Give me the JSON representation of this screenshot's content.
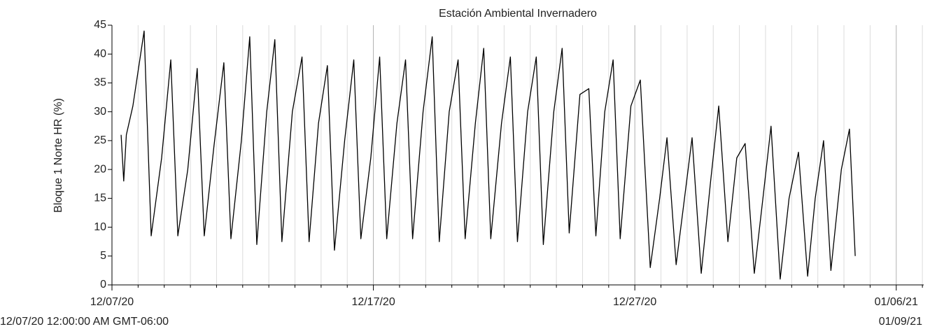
{
  "chart_data": {
    "type": "line",
    "title": "Estación Ambiental Invernadero",
    "ylabel": "Bloque 1 Norte HR (%)",
    "start_label": "12/07/20 12:00:00 AM GMT-06:00",
    "end_label": "01/09/21",
    "xlim": [
      0,
      31.05
    ],
    "xticks": [
      {
        "value": 0,
        "label": "12/07/20"
      },
      {
        "value": 10,
        "label": "12/17/20"
      },
      {
        "value": 20,
        "label": "12/27/20"
      },
      {
        "value": 30,
        "label": "01/06/21"
      }
    ],
    "x_minor_ticks": [
      1,
      2,
      3,
      4,
      5,
      6,
      7,
      8,
      9,
      11,
      12,
      13,
      14,
      15,
      16,
      17,
      18,
      19,
      21,
      22,
      23,
      24,
      25,
      26,
      27,
      28,
      29,
      31
    ],
    "ylim": [
      0,
      45
    ],
    "yticks": [
      0,
      5,
      10,
      15,
      20,
      25,
      30,
      35,
      40,
      45
    ],
    "grid": true,
    "series": [
      {
        "color": "#000000",
        "x": [
          0.35,
          0.45,
          0.55,
          0.8,
          1.23,
          1.5,
          1.9,
          2.25,
          2.52,
          2.9,
          3.26,
          3.53,
          3.9,
          4.28,
          4.55,
          4.95,
          5.27,
          5.54,
          5.92,
          6.23,
          6.5,
          6.9,
          7.27,
          7.54,
          7.9,
          8.24,
          8.51,
          8.9,
          9.25,
          9.52,
          9.9,
          10.24,
          10.51,
          10.9,
          11.23,
          11.5,
          11.9,
          12.25,
          12.52,
          12.9,
          13.24,
          13.51,
          13.9,
          14.22,
          14.49,
          14.9,
          15.24,
          15.51,
          15.9,
          16.23,
          16.5,
          16.9,
          17.22,
          17.49,
          17.9,
          18.24,
          18.51,
          18.85,
          19.17,
          19.44,
          19.85,
          20.21,
          20.59,
          20.95,
          21.23,
          21.58,
          21.9,
          22.19,
          22.54,
          22.9,
          23.21,
          23.56,
          23.9,
          24.22,
          24.57,
          24.9,
          25.21,
          25.56,
          25.9,
          26.26,
          26.61,
          26.9,
          27.22,
          27.5,
          27.9,
          28.21,
          28.43
        ],
        "values": [
          26,
          18,
          26,
          31,
          44,
          8.5,
          22,
          39,
          8.5,
          20,
          37.5,
          8.5,
          24,
          38.5,
          8,
          25,
          43,
          7,
          30,
          42.5,
          7.5,
          30,
          39.5,
          7.5,
          28,
          38,
          6,
          25,
          39,
          8,
          22,
          39.5,
          8,
          28,
          39,
          8,
          30,
          43,
          7.5,
          30,
          39,
          8,
          28,
          41,
          8,
          28,
          39.5,
          7.5,
          30,
          39.5,
          7,
          30,
          41,
          9,
          33,
          34,
          8.5,
          30,
          39,
          8,
          31,
          35.5,
          3,
          15,
          25.5,
          3.5,
          15,
          25.5,
          2,
          18,
          31,
          7.5,
          22,
          24.5,
          2,
          15,
          27.5,
          1,
          15,
          23,
          1.5,
          15,
          25,
          2.5,
          20,
          27,
          5
        ]
      }
    ]
  }
}
